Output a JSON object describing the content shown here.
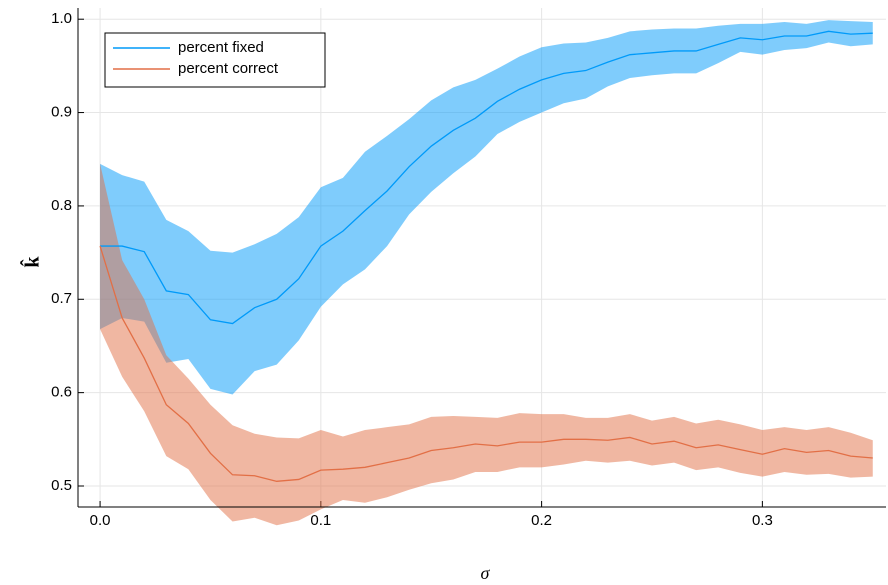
{
  "chart_data": {
    "type": "line_band",
    "xlabel": "σ",
    "ylabel": "k̂",
    "x": [
      0,
      0.01,
      0.02,
      0.03,
      0.04,
      0.05,
      0.06,
      0.07,
      0.08,
      0.09,
      0.1,
      0.11,
      0.12,
      0.13,
      0.14,
      0.15,
      0.16,
      0.17,
      0.18,
      0.19,
      0.2,
      0.21,
      0.22,
      0.23,
      0.24,
      0.25,
      0.26,
      0.27,
      0.28,
      0.29,
      0.3,
      0.31,
      0.32,
      0.33,
      0.34,
      0.35
    ],
    "series": [
      {
        "name": "percent fixed",
        "color": "#009af9",
        "values": [
          0.757,
          0.757,
          0.751,
          0.709,
          0.705,
          0.678,
          0.674,
          0.691,
          0.7,
          0.722,
          0.757,
          0.773,
          0.795,
          0.816,
          0.842,
          0.864,
          0.881,
          0.894,
          0.912,
          0.925,
          0.935,
          0.942,
          0.945,
          0.954,
          0.962,
          0.964,
          0.966,
          0.966,
          0.973,
          0.98,
          0.978,
          0.982,
          0.982,
          0.987,
          0.984,
          0.985
        ],
        "upper": [
          0.845,
          0.833,
          0.826,
          0.785,
          0.773,
          0.752,
          0.75,
          0.759,
          0.77,
          0.788,
          0.82,
          0.83,
          0.858,
          0.875,
          0.893,
          0.913,
          0.927,
          0.935,
          0.947,
          0.96,
          0.97,
          0.974,
          0.975,
          0.98,
          0.987,
          0.989,
          0.99,
          0.99,
          0.993,
          0.995,
          0.995,
          0.997,
          0.995,
          0.999,
          0.998,
          0.997
        ],
        "lower": [
          0.668,
          0.68,
          0.676,
          0.632,
          0.636,
          0.604,
          0.598,
          0.623,
          0.63,
          0.656,
          0.692,
          0.716,
          0.732,
          0.757,
          0.791,
          0.815,
          0.835,
          0.853,
          0.877,
          0.89,
          0.9,
          0.91,
          0.915,
          0.928,
          0.937,
          0.94,
          0.942,
          0.942,
          0.953,
          0.965,
          0.962,
          0.967,
          0.969,
          0.975,
          0.971,
          0.973
        ]
      },
      {
        "name": "percent correct",
        "color": "#e26f46",
        "values": [
          0.757,
          0.68,
          0.637,
          0.587,
          0.567,
          0.535,
          0.512,
          0.511,
          0.505,
          0.507,
          0.517,
          0.518,
          0.52,
          0.525,
          0.53,
          0.538,
          0.541,
          0.545,
          0.543,
          0.547,
          0.547,
          0.55,
          0.55,
          0.549,
          0.552,
          0.545,
          0.548,
          0.541,
          0.544,
          0.539,
          0.534,
          0.54,
          0.536,
          0.538,
          0.532,
          0.53
        ],
        "upper": [
          0.845,
          0.742,
          0.7,
          0.64,
          0.615,
          0.587,
          0.565,
          0.556,
          0.552,
          0.551,
          0.56,
          0.553,
          0.56,
          0.563,
          0.566,
          0.574,
          0.575,
          0.574,
          0.573,
          0.578,
          0.577,
          0.577,
          0.573,
          0.573,
          0.577,
          0.57,
          0.574,
          0.567,
          0.571,
          0.566,
          0.56,
          0.563,
          0.56,
          0.563,
          0.557,
          0.549
        ],
        "lower": [
          0.668,
          0.617,
          0.58,
          0.532,
          0.518,
          0.485,
          0.462,
          0.466,
          0.458,
          0.463,
          0.475,
          0.485,
          0.482,
          0.488,
          0.496,
          0.503,
          0.507,
          0.515,
          0.515,
          0.52,
          0.52,
          0.523,
          0.527,
          0.525,
          0.527,
          0.522,
          0.525,
          0.517,
          0.52,
          0.514,
          0.51,
          0.515,
          0.512,
          0.513,
          0.509,
          0.51
        ]
      }
    ],
    "xlim": [
      -0.01,
      0.356
    ],
    "ylim": [
      0.4775,
      1.012
    ],
    "xticks": [
      {
        "value": 0,
        "label": "0.0"
      },
      0.1,
      0.2,
      0.3
    ],
    "yticks": [
      0.5,
      0.6,
      0.7,
      0.8,
      0.9,
      {
        "value": 1,
        "label": "1.0"
      }
    ],
    "grid": true,
    "legend": "top-left",
    "band_opacity": 0.5
  }
}
